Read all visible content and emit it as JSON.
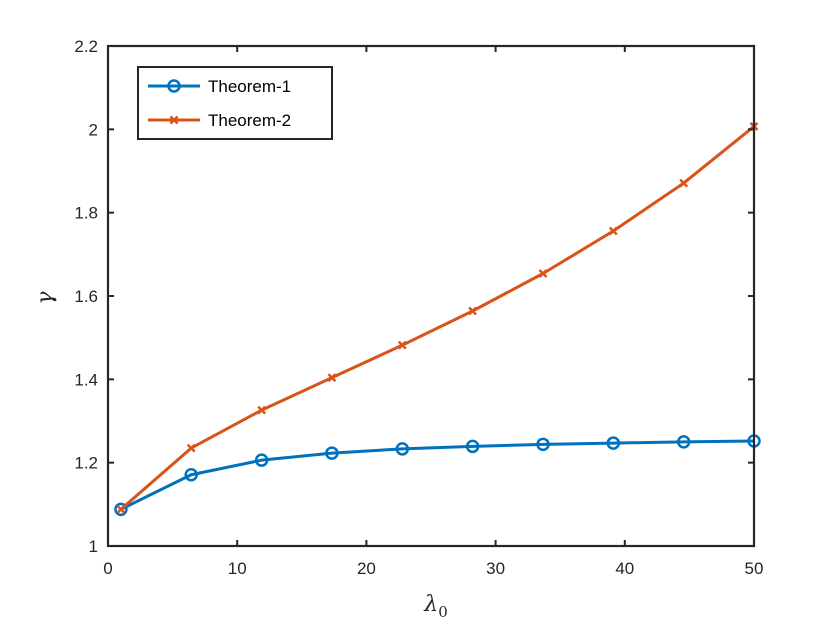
{
  "chart_data": {
    "type": "line",
    "title": "",
    "xlabel": "λ",
    "xlabel_subscript": "0",
    "ylabel": "γ",
    "xlim": [
      0,
      50
    ],
    "ylim": [
      1,
      2.2
    ],
    "xticks": [
      0,
      10,
      20,
      30,
      40,
      50
    ],
    "xtick_labels": [
      "0",
      "10",
      "20",
      "30",
      "40",
      "50"
    ],
    "yticks": [
      1,
      1.2,
      1.4,
      1.6,
      1.8,
      2,
      2.2
    ],
    "ytick_labels": [
      "1",
      "1.2",
      "1.4",
      "1.6",
      "1.8",
      "2",
      "2.2"
    ],
    "grid": false,
    "legend_position": "top-left",
    "x": [
      1,
      6.44,
      11.89,
      17.33,
      22.78,
      28.22,
      33.67,
      39.11,
      44.56,
      50
    ],
    "series": [
      {
        "name": "Theorem-1",
        "marker": "circle",
        "color": "#0072BD",
        "values": [
          1.088,
          1.171,
          1.206,
          1.223,
          1.233,
          1.239,
          1.244,
          1.247,
          1.25,
          1.252
        ]
      },
      {
        "name": "Theorem-2",
        "marker": "x",
        "color": "#D95319",
        "values": [
          1.088,
          1.235,
          1.326,
          1.404,
          1.482,
          1.564,
          1.654,
          1.756,
          1.871,
          2.007
        ]
      }
    ]
  }
}
